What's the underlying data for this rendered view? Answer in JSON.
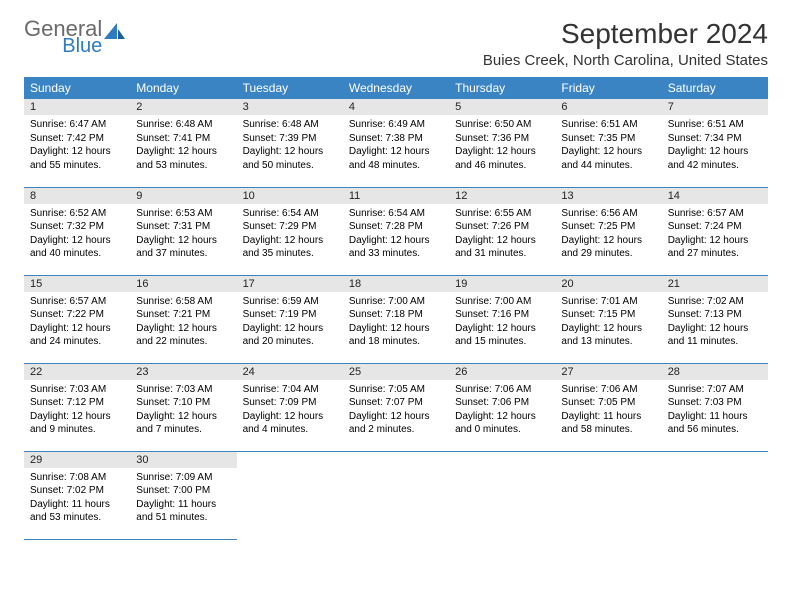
{
  "brand": {
    "part1": "General",
    "part2": "Blue",
    "color_gray": "#6b6b6b",
    "color_blue": "#2f7bbf"
  },
  "title": "September 2024",
  "location": "Buies Creek, North Carolina, United States",
  "colors": {
    "header_bg": "#3b84c4",
    "header_fg": "#ffffff",
    "daynum_bg": "#e6e6e6",
    "row_border": "#3b84c4",
    "page_bg": "#ffffff"
  },
  "day_headers": [
    "Sunday",
    "Monday",
    "Tuesday",
    "Wednesday",
    "Thursday",
    "Friday",
    "Saturday"
  ],
  "days": [
    {
      "n": 1,
      "sunrise": "6:47 AM",
      "sunset": "7:42 PM",
      "daylight": "12 hours and 55 minutes."
    },
    {
      "n": 2,
      "sunrise": "6:48 AM",
      "sunset": "7:41 PM",
      "daylight": "12 hours and 53 minutes."
    },
    {
      "n": 3,
      "sunrise": "6:48 AM",
      "sunset": "7:39 PM",
      "daylight": "12 hours and 50 minutes."
    },
    {
      "n": 4,
      "sunrise": "6:49 AM",
      "sunset": "7:38 PM",
      "daylight": "12 hours and 48 minutes."
    },
    {
      "n": 5,
      "sunrise": "6:50 AM",
      "sunset": "7:36 PM",
      "daylight": "12 hours and 46 minutes."
    },
    {
      "n": 6,
      "sunrise": "6:51 AM",
      "sunset": "7:35 PM",
      "daylight": "12 hours and 44 minutes."
    },
    {
      "n": 7,
      "sunrise": "6:51 AM",
      "sunset": "7:34 PM",
      "daylight": "12 hours and 42 minutes."
    },
    {
      "n": 8,
      "sunrise": "6:52 AM",
      "sunset": "7:32 PM",
      "daylight": "12 hours and 40 minutes."
    },
    {
      "n": 9,
      "sunrise": "6:53 AM",
      "sunset": "7:31 PM",
      "daylight": "12 hours and 37 minutes."
    },
    {
      "n": 10,
      "sunrise": "6:54 AM",
      "sunset": "7:29 PM",
      "daylight": "12 hours and 35 minutes."
    },
    {
      "n": 11,
      "sunrise": "6:54 AM",
      "sunset": "7:28 PM",
      "daylight": "12 hours and 33 minutes."
    },
    {
      "n": 12,
      "sunrise": "6:55 AM",
      "sunset": "7:26 PM",
      "daylight": "12 hours and 31 minutes."
    },
    {
      "n": 13,
      "sunrise": "6:56 AM",
      "sunset": "7:25 PM",
      "daylight": "12 hours and 29 minutes."
    },
    {
      "n": 14,
      "sunrise": "6:57 AM",
      "sunset": "7:24 PM",
      "daylight": "12 hours and 27 minutes."
    },
    {
      "n": 15,
      "sunrise": "6:57 AM",
      "sunset": "7:22 PM",
      "daylight": "12 hours and 24 minutes."
    },
    {
      "n": 16,
      "sunrise": "6:58 AM",
      "sunset": "7:21 PM",
      "daylight": "12 hours and 22 minutes."
    },
    {
      "n": 17,
      "sunrise": "6:59 AM",
      "sunset": "7:19 PM",
      "daylight": "12 hours and 20 minutes."
    },
    {
      "n": 18,
      "sunrise": "7:00 AM",
      "sunset": "7:18 PM",
      "daylight": "12 hours and 18 minutes."
    },
    {
      "n": 19,
      "sunrise": "7:00 AM",
      "sunset": "7:16 PM",
      "daylight": "12 hours and 15 minutes."
    },
    {
      "n": 20,
      "sunrise": "7:01 AM",
      "sunset": "7:15 PM",
      "daylight": "12 hours and 13 minutes."
    },
    {
      "n": 21,
      "sunrise": "7:02 AM",
      "sunset": "7:13 PM",
      "daylight": "12 hours and 11 minutes."
    },
    {
      "n": 22,
      "sunrise": "7:03 AM",
      "sunset": "7:12 PM",
      "daylight": "12 hours and 9 minutes."
    },
    {
      "n": 23,
      "sunrise": "7:03 AM",
      "sunset": "7:10 PM",
      "daylight": "12 hours and 7 minutes."
    },
    {
      "n": 24,
      "sunrise": "7:04 AM",
      "sunset": "7:09 PM",
      "daylight": "12 hours and 4 minutes."
    },
    {
      "n": 25,
      "sunrise": "7:05 AM",
      "sunset": "7:07 PM",
      "daylight": "12 hours and 2 minutes."
    },
    {
      "n": 26,
      "sunrise": "7:06 AM",
      "sunset": "7:06 PM",
      "daylight": "12 hours and 0 minutes."
    },
    {
      "n": 27,
      "sunrise": "7:06 AM",
      "sunset": "7:05 PM",
      "daylight": "11 hours and 58 minutes."
    },
    {
      "n": 28,
      "sunrise": "7:07 AM",
      "sunset": "7:03 PM",
      "daylight": "11 hours and 56 minutes."
    },
    {
      "n": 29,
      "sunrise": "7:08 AM",
      "sunset": "7:02 PM",
      "daylight": "11 hours and 53 minutes."
    },
    {
      "n": 30,
      "sunrise": "7:09 AM",
      "sunset": "7:00 PM",
      "daylight": "11 hours and 51 minutes."
    }
  ],
  "layout": {
    "first_weekday_index": 0,
    "cols": 7,
    "font_family": "Arial",
    "title_fontsize": 28,
    "location_fontsize": 15,
    "header_fontsize": 12,
    "daynum_fontsize": 11,
    "body_fontsize": 10
  },
  "labels": {
    "sunrise": "Sunrise:",
    "sunset": "Sunset:",
    "daylight": "Daylight:"
  }
}
